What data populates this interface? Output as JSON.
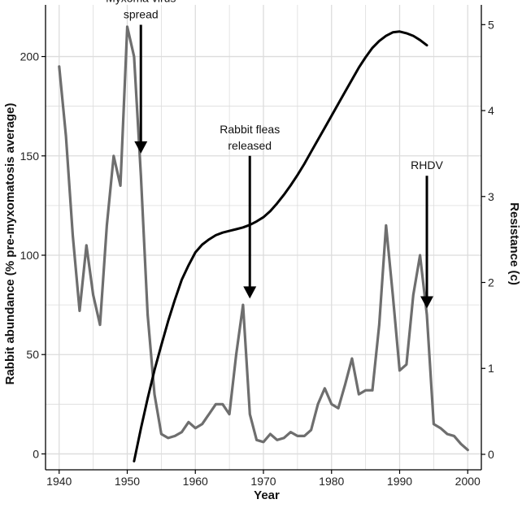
{
  "chart_data": {
    "type": "line",
    "title": "",
    "xlabel": "Year",
    "ylabel": "Rabbit abundance (% pre-myxomatosis average)",
    "y2label": "Resistance (c)",
    "xlim": [
      1938,
      2002
    ],
    "ylim": [
      -8,
      226
    ],
    "y2lim": [
      -0.18,
      5.23
    ],
    "x_ticks": [
      1940,
      1950,
      1960,
      1970,
      1980,
      1990,
      2000
    ],
    "y_ticks": [
      0,
      50,
      100,
      150,
      200
    ],
    "y2_ticks": [
      0,
      1,
      2,
      3,
      4,
      5
    ],
    "grid": true,
    "colors": {
      "abundance": "#6e6e6e",
      "resistance": "#000000",
      "grid": "#dcdcdc",
      "axis": "#000000"
    },
    "series": [
      {
        "key": "abundance",
        "axis": "left",
        "x": [
          1940,
          1941,
          1942,
          1943,
          1944,
          1945,
          1946,
          1947,
          1948,
          1949,
          1950,
          1951,
          1952,
          1953,
          1954,
          1955,
          1956,
          1957,
          1958,
          1959,
          1960,
          1961,
          1962,
          1963,
          1964,
          1965,
          1966,
          1967,
          1968,
          1969,
          1970,
          1971,
          1972,
          1973,
          1974,
          1975,
          1976,
          1977,
          1978,
          1979,
          1980,
          1981,
          1982,
          1983,
          1984,
          1985,
          1986,
          1987,
          1988,
          1989,
          1990,
          1991,
          1992,
          1993,
          1994,
          1995,
          1996,
          1997,
          1998,
          1999,
          2000
        ],
        "y": [
          195,
          160,
          110,
          72,
          105,
          80,
          65,
          115,
          150,
          135,
          215,
          200,
          140,
          70,
          30,
          10,
          8,
          9,
          11,
          16,
          13,
          15,
          20,
          25,
          25,
          20,
          50,
          75,
          20,
          7,
          6,
          10,
          7,
          8,
          11,
          9,
          9,
          12,
          25,
          33,
          25,
          23,
          35,
          48,
          30,
          32,
          32,
          65,
          115,
          80,
          42,
          45,
          80,
          100,
          70,
          15,
          13,
          10,
          9,
          5,
          2
        ]
      },
      {
        "key": "resistance",
        "axis": "right",
        "x": [
          1951,
          1952,
          1953,
          1954,
          1955,
          1956,
          1957,
          1958,
          1959,
          1960,
          1961,
          1962,
          1963,
          1964,
          1965,
          1966,
          1967,
          1968,
          1969,
          1970,
          1971,
          1972,
          1973,
          1974,
          1975,
          1976,
          1977,
          1978,
          1979,
          1980,
          1981,
          1982,
          1983,
          1984,
          1985,
          1986,
          1987,
          1988,
          1989,
          1990,
          1991,
          1992,
          1993,
          1994
        ],
        "y": [
          -0.08,
          0.3,
          0.65,
          0.98,
          1.27,
          1.55,
          1.8,
          2.03,
          2.2,
          2.35,
          2.44,
          2.5,
          2.55,
          2.58,
          2.6,
          2.62,
          2.64,
          2.67,
          2.71,
          2.76,
          2.83,
          2.92,
          3.02,
          3.13,
          3.25,
          3.38,
          3.52,
          3.66,
          3.8,
          3.94,
          4.08,
          4.22,
          4.36,
          4.5,
          4.62,
          4.73,
          4.81,
          4.87,
          4.91,
          4.92,
          4.9,
          4.87,
          4.82,
          4.76
        ]
      }
    ],
    "annotations": [
      {
        "lines": [
          "Myxoma virus",
          "spread"
        ],
        "x": 1952,
        "y_start": 216,
        "y_end": 152
      },
      {
        "lines": [
          "Rabbit fleas",
          "released"
        ],
        "x": 1968,
        "y_start": 150,
        "y_end": 79
      },
      {
        "lines": [
          "RHDV"
        ],
        "x": 1994,
        "y_start": 140,
        "y_end": 74
      }
    ]
  }
}
